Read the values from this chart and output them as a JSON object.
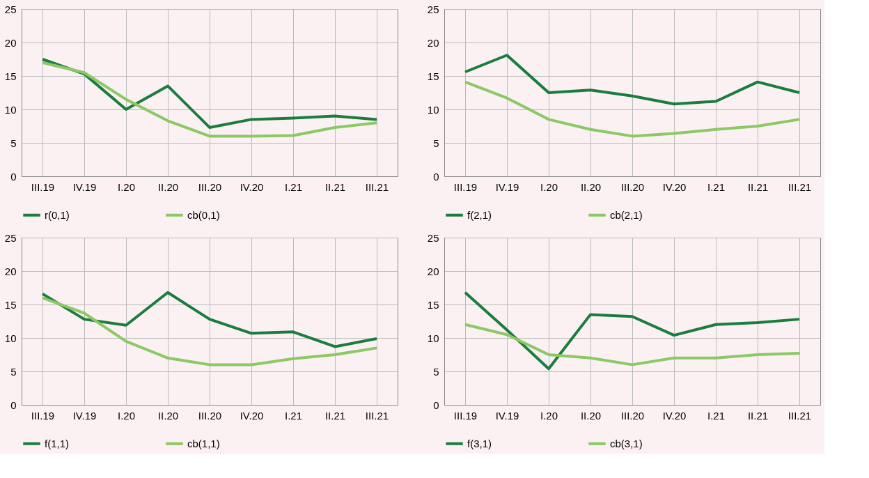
{
  "chart_data": [
    {
      "type": "line",
      "categories": [
        "III.19",
        "IV.19",
        "I.20",
        "II.20",
        "III.20",
        "IV.20",
        "I.21",
        "II.21",
        "III.21"
      ],
      "ylim": [
        0,
        25
      ],
      "yticks": [
        0,
        5,
        10,
        15,
        20,
        25
      ],
      "grid": true,
      "legend": "bottom",
      "line_style": "solid",
      "series": [
        {
          "name": "r(0,1)",
          "color": "#1a7d3e",
          "values": [
            17.5,
            15.3,
            10.0,
            13.5,
            7.3,
            8.5,
            8.7,
            9.0,
            8.5
          ]
        },
        {
          "name": "cb(0,1)",
          "color": "#8cc865",
          "values": [
            17.0,
            15.5,
            11.5,
            8.3,
            6.0,
            6.0,
            6.1,
            7.3,
            8.0
          ]
        }
      ]
    },
    {
      "type": "line",
      "categories": [
        "III.19",
        "IV.19",
        "I.20",
        "II.20",
        "III.20",
        "IV.20",
        "I.21",
        "II.21",
        "III.21"
      ],
      "ylim": [
        0,
        25
      ],
      "yticks": [
        0,
        5,
        10,
        15,
        20,
        25
      ],
      "grid": true,
      "legend": "bottom",
      "line_style": "solid",
      "series": [
        {
          "name": "f(2,1)",
          "color": "#1a7d3e",
          "values": [
            15.6,
            18.1,
            12.5,
            12.9,
            12.0,
            10.8,
            11.2,
            14.1,
            12.5
          ]
        },
        {
          "name": "cb(2,1)",
          "color": "#8cc865",
          "values": [
            14.1,
            11.7,
            8.5,
            7.0,
            6.0,
            6.4,
            7.0,
            7.5,
            8.5
          ]
        }
      ]
    },
    {
      "type": "line",
      "categories": [
        "III.19",
        "IV.19",
        "I.20",
        "II.20",
        "III.20",
        "IV.20",
        "I.21",
        "II.21",
        "III.21"
      ],
      "ylim": [
        0,
        25
      ],
      "yticks": [
        0,
        5,
        10,
        15,
        20,
        25
      ],
      "grid": true,
      "legend": "bottom",
      "line_style": "solid",
      "series": [
        {
          "name": "f(1,1)",
          "color": "#1a7d3e",
          "values": [
            16.6,
            12.8,
            11.9,
            16.8,
            12.8,
            10.7,
            10.9,
            8.7,
            9.9
          ]
        },
        {
          "name": "cb(1,1)",
          "color": "#8cc865",
          "values": [
            16.0,
            13.7,
            9.5,
            7.0,
            6.0,
            6.0,
            6.9,
            7.5,
            8.5
          ]
        }
      ]
    },
    {
      "type": "line",
      "categories": [
        "III.19",
        "IV.19",
        "I.20",
        "II.20",
        "III.20",
        "IV.20",
        "I.21",
        "II.21",
        "III.21"
      ],
      "ylim": [
        0,
        25
      ],
      "yticks": [
        0,
        5,
        10,
        15,
        20,
        25
      ],
      "grid": true,
      "legend": "bottom",
      "line_style": "solid",
      "series": [
        {
          "name": "f(3,1)",
          "color": "#1a7d3e",
          "values": [
            16.8,
            11.2,
            5.4,
            13.5,
            13.2,
            10.4,
            12.0,
            12.3,
            12.8
          ]
        },
        {
          "name": "cb(3,1)",
          "color": "#8cc865",
          "values": [
            12.0,
            10.5,
            7.5,
            7.0,
            6.0,
            7.0,
            7.0,
            7.5,
            7.7
          ]
        }
      ]
    }
  ]
}
